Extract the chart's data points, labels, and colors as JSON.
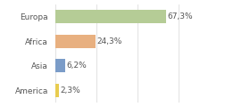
{
  "categories": [
    "Europa",
    "Africa",
    "Asia",
    "America"
  ],
  "values": [
    67.3,
    24.3,
    6.2,
    2.3
  ],
  "labels": [
    "67,3%",
    "24,3%",
    "6,2%",
    "2,3%"
  ],
  "bar_colors": [
    "#b5cc96",
    "#e8b080",
    "#7b9cc8",
    "#e8cc50"
  ],
  "background_color": "#ffffff",
  "plot_bg_color": "#ffffff",
  "xlim": [
    0,
    100
  ],
  "bar_height": 0.55,
  "label_fontsize": 6.5,
  "tick_fontsize": 6.5,
  "label_color": "#555555",
  "grid_color": "#dddddd"
}
